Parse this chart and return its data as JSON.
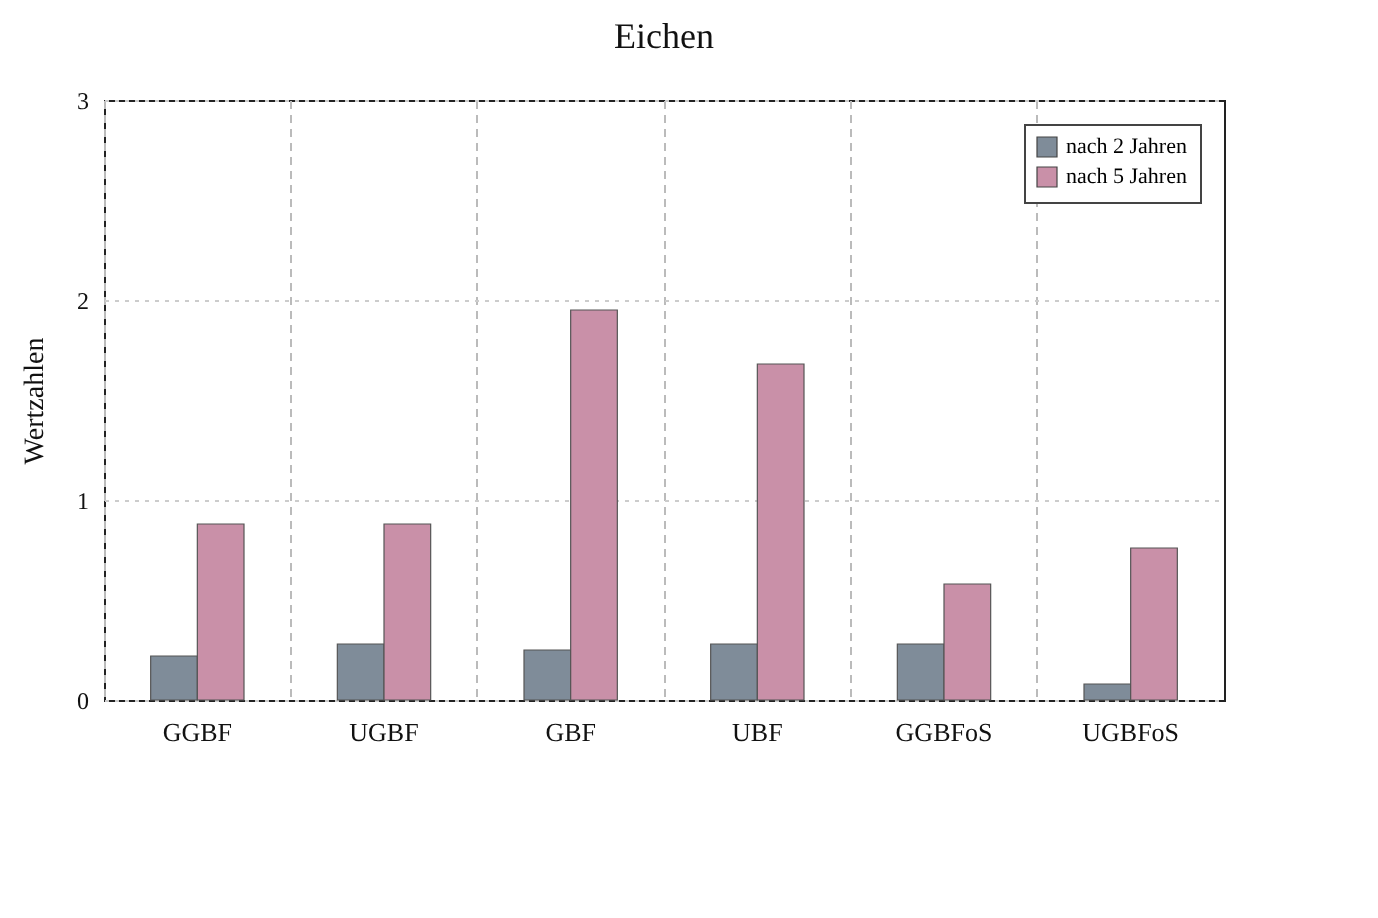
{
  "chart_data": {
    "type": "bar",
    "title": "Eichen",
    "ylabel": "Wertzahlen",
    "categories": [
      "GGBF",
      "UGBF",
      "GBF",
      "UBF",
      "GGBFoS",
      "UGBFoS"
    ],
    "series": [
      {
        "name": "nach 2 Jahren",
        "color": "#7f8c99",
        "values": [
          0.22,
          0.28,
          0.25,
          0.28,
          0.28,
          0.08
        ]
      },
      {
        "name": "nach 5 Jahren",
        "color": "#c990a8",
        "values": [
          0.88,
          0.88,
          1.95,
          1.68,
          0.58,
          0.76
        ]
      }
    ],
    "ylim": [
      0,
      3
    ],
    "yticks": [
      0,
      1,
      2,
      3
    ],
    "grid": true,
    "legend": "top right"
  }
}
